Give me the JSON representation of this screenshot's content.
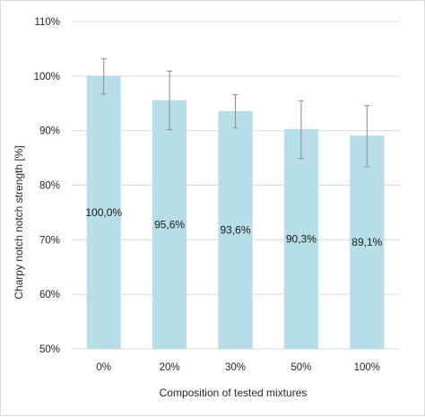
{
  "chart_data": {
    "type": "bar",
    "title": "",
    "xlabel": "Composition of tested mixtures",
    "ylabel": "Charpy notch notch strength [%]",
    "categories": [
      "0%",
      "20%",
      "30%",
      "50%",
      "100%"
    ],
    "values": [
      100.0,
      95.6,
      93.6,
      90.3,
      89.1
    ],
    "data_labels": [
      "100,0%",
      "95,6%",
      "93,6%",
      "90,3%",
      "89,1%"
    ],
    "error_low": [
      96.7,
      90.2,
      90.5,
      84.9,
      83.4
    ],
    "error_high": [
      103.2,
      100.9,
      96.6,
      95.5,
      94.6
    ],
    "ylim": [
      50,
      110
    ],
    "yticks": [
      50,
      60,
      70,
      80,
      90,
      100,
      110
    ],
    "ytick_labels": [
      "50%",
      "60%",
      "70%",
      "80%",
      "90%",
      "100%",
      "110%"
    ],
    "grid": true,
    "legend": "none",
    "colors": {
      "bar": "#b7dde6",
      "grid": "#d9d9d9",
      "error_bar": "#8c8c8c",
      "text": "#262626"
    }
  }
}
